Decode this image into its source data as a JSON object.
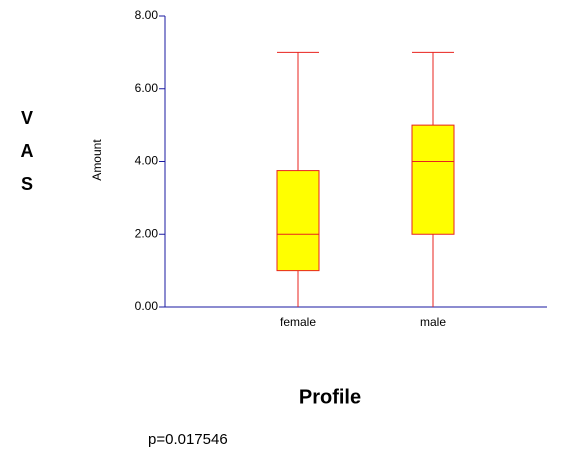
{
  "chart_data": {
    "type": "box",
    "outer_ylabel": "VAS",
    "ylabel": "Amount",
    "xlabel": "Profile",
    "annotation": "p=0.017546",
    "categories": [
      "female",
      "male"
    ],
    "boxes": [
      {
        "min": 0,
        "q1": 1,
        "median": 2,
        "q3": 3.75,
        "max": 7
      },
      {
        "min": 0,
        "q1": 2,
        "median": 4,
        "q3": 5,
        "max": 7
      }
    ],
    "color": "#ffff00",
    "edge_color": "#e8231e",
    "ylim": [
      0,
      8
    ],
    "yticks": [
      {
        "value": 0,
        "label": "0.00"
      },
      {
        "value": 2,
        "label": "2.00"
      },
      {
        "value": 4,
        "label": "4.00"
      },
      {
        "value": 6,
        "label": "6.00"
      },
      {
        "value": 8,
        "label": "8.00"
      }
    ]
  }
}
